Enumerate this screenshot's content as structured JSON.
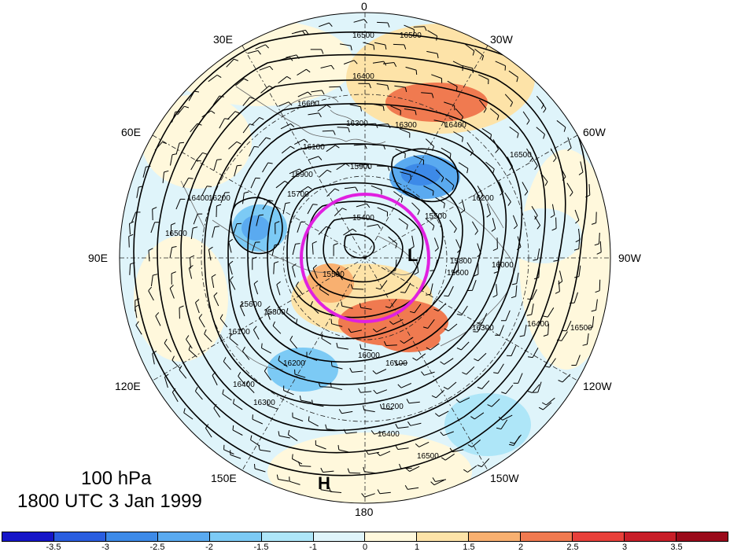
{
  "map": {
    "level": "100 hPa",
    "time": "1800 UTC 3 Jan 1999",
    "longitude_labels": [
      "0",
      "30W",
      "60W",
      "90W",
      "120W",
      "150W",
      "180",
      "150E",
      "120E",
      "90E",
      "60E",
      "30E"
    ],
    "contour_labels": [
      "16500",
      "16500",
      "16400",
      "16300",
      "16400",
      "16500",
      "16200",
      "16000",
      "15800",
      "15600",
      "15500",
      "15400",
      "15700",
      "15900",
      "16100",
      "16300",
      "16600",
      "16400",
      "16200",
      "15900",
      "15500",
      "16300",
      "16400",
      "16500",
      "16200",
      "16100",
      "16000",
      "15800",
      "15600",
      "16100",
      "16200",
      "16400",
      "16300",
      "16500",
      "16500",
      "16400"
    ],
    "highs_lows": {
      "low": "L",
      "high": "H"
    },
    "highlight_circle_color": "#e020e0",
    "colorbar": {
      "ticks": [
        "-3.5",
        "-3",
        "-2.5",
        "-2",
        "-1.5",
        "-1",
        "0",
        "1",
        "1.5",
        "2",
        "2.5",
        "3",
        "3.5"
      ],
      "colors": [
        "#1515c8",
        "#2a5ee0",
        "#3d8ae8",
        "#5aaaf0",
        "#7ccaf5",
        "#aee6f8",
        "#dff4fa",
        "#fff8dc",
        "#fde3a8",
        "#f8b070",
        "#f07a50",
        "#e8403a",
        "#c81e28",
        "#9a0a1a"
      ]
    }
  }
}
